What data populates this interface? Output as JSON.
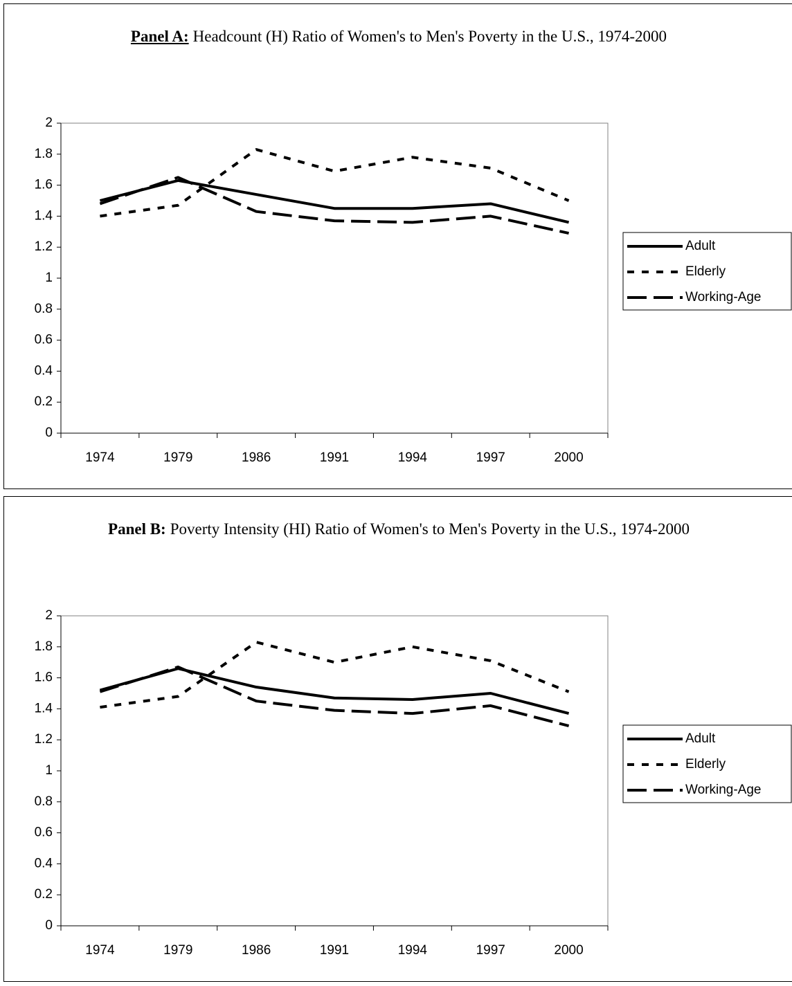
{
  "chart_data": [
    {
      "type": "line",
      "panel": "Panel A:",
      "title": "Headcount (H) Ratio of Women's to Men's Poverty in the U.S., 1974-2000",
      "categories": [
        "1974",
        "1979",
        "1986",
        "1991",
        "1994",
        "1997",
        "2000"
      ],
      "series": [
        {
          "name": "Adult",
          "color": "#000000",
          "line_style": "solid",
          "values": [
            1.5,
            1.63,
            1.54,
            1.45,
            1.45,
            1.48,
            1.36
          ]
        },
        {
          "name": "Elderly",
          "color": "#000000",
          "line_style": "dashed",
          "values": [
            1.4,
            1.47,
            1.83,
            1.69,
            1.78,
            1.71,
            1.5
          ]
        },
        {
          "name": "Working-Age",
          "color": "#000000",
          "line_style": "long-dash",
          "values": [
            1.48,
            1.65,
            1.43,
            1.37,
            1.36,
            1.4,
            1.29
          ]
        }
      ],
      "ylim": [
        0,
        2
      ],
      "yticks": [
        0,
        0.2,
        0.4,
        0.6,
        0.8,
        1,
        1.2,
        1.4,
        1.6,
        1.8,
        2
      ],
      "grid": false,
      "legend": "right"
    },
    {
      "type": "line",
      "panel": "Panel B:",
      "title": "Poverty Intensity (HI) Ratio of Women's to Men's Poverty in the U.S., 1974-2000",
      "categories": [
        "1974",
        "1979",
        "1986",
        "1991",
        "1994",
        "1997",
        "2000"
      ],
      "series": [
        {
          "name": "Adult",
          "color": "#000000",
          "line_style": "solid",
          "values": [
            1.52,
            1.66,
            1.54,
            1.47,
            1.46,
            1.5,
            1.37
          ]
        },
        {
          "name": "Elderly",
          "color": "#000000",
          "line_style": "dashed",
          "values": [
            1.41,
            1.48,
            1.83,
            1.7,
            1.8,
            1.71,
            1.51
          ]
        },
        {
          "name": "Working-Age",
          "color": "#000000",
          "line_style": "long-dash",
          "values": [
            1.51,
            1.67,
            1.45,
            1.39,
            1.37,
            1.42,
            1.29
          ]
        }
      ],
      "ylim": [
        0,
        2
      ],
      "yticks": [
        0,
        0.2,
        0.4,
        0.6,
        0.8,
        1,
        1.2,
        1.4,
        1.6,
        1.8,
        2
      ],
      "grid": false,
      "legend": "right"
    }
  ]
}
